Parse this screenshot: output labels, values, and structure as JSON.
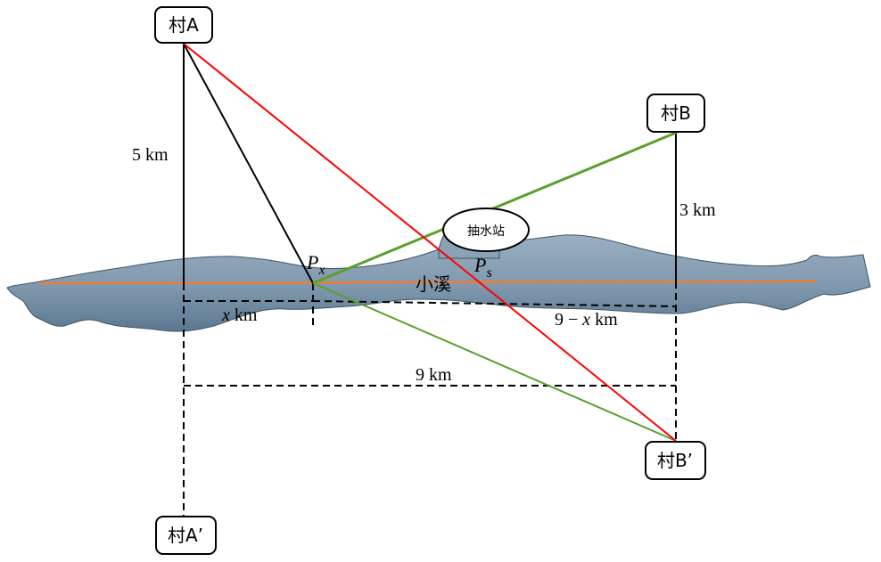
{
  "villages": {
    "a": "村A",
    "b": "村B",
    "a_reflect": "村A’",
    "b_reflect": "村B’"
  },
  "stream_label": "小溪",
  "pump_station_label": "抽水站",
  "distances": {
    "a_height": "5 km",
    "b_height": "3 km",
    "total_width": "9 km",
    "x_var": "x",
    "x_unit": " km",
    "remain_prefix": "9 − ",
    "remain_var": "x",
    "remain_unit": " km"
  },
  "points": {
    "px_letter": "P",
    "px_sub": "x",
    "ps_letter": "P",
    "ps_sub": "s"
  },
  "colors": {
    "river_fill": "#7f98ae",
    "river_dark": "#5c7890",
    "river_stroke": "#3e5566",
    "center_line": "#ed7d31",
    "optimal_path": "#ff0000",
    "green_path": "#5aa02c",
    "line": "#000000"
  }
}
